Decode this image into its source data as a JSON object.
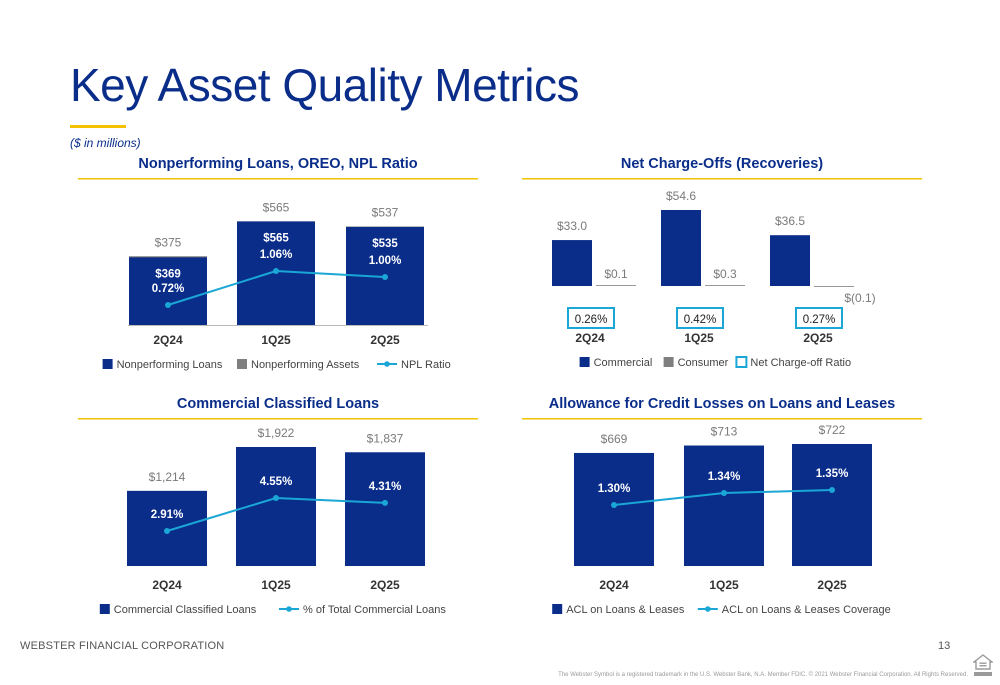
{
  "page": {
    "title": "Key Asset Quality Metrics",
    "subtitle": "($ in millions)",
    "footer_company": "WEBSTER FINANCIAL CORPORATION",
    "page_number": "13",
    "disclaimer": "The Webster Symbol is a registered trademark in the U.S. Webster Bank, N.A. Member FDIC. © 2021 Webster Financial Corporation. All Rights Reserved.",
    "housing_logo_text": "EQUAL HOUSING LENDER"
  },
  "colors": {
    "navy": "#0a2d8a",
    "gray": "#7f7f7f",
    "cyan": "#1aa7d6",
    "gold": "#f2c200",
    "label_gray": "#7a7a7a"
  },
  "chart_data": [
    {
      "id": "npl",
      "type": "bar",
      "title": "Nonperforming Loans, OREO, NPL Ratio",
      "categories": [
        "2Q24",
        "1Q25",
        "2Q25"
      ],
      "series": [
        {
          "name": "Nonperforming Loans",
          "type": "bar",
          "values": [
            369,
            565,
            535
          ],
          "labels": [
            "$369",
            "$565",
            "$535"
          ]
        },
        {
          "name": "Nonperforming Assets",
          "type": "bar",
          "values": [
            375,
            565,
            537
          ],
          "labels": [
            "$375",
            "$565",
            "$537"
          ]
        },
        {
          "name": "NPL Ratio",
          "type": "line",
          "values": [
            0.72,
            1.06,
            1.0
          ],
          "labels": [
            "0.72%",
            "1.06%",
            "1.00%"
          ]
        }
      ],
      "ylim": [
        0,
        600
      ],
      "legend": "bottom"
    },
    {
      "id": "nco",
      "type": "bar",
      "title": "Net Charge-Offs (Recoveries)",
      "categories": [
        "2Q24",
        "1Q25",
        "2Q25"
      ],
      "series": [
        {
          "name": "Commercial",
          "type": "bar",
          "values": [
            33.0,
            54.6,
            36.5
          ],
          "labels": [
            "$33.0",
            "$54.6",
            "$36.5"
          ]
        },
        {
          "name": "Consumer",
          "type": "bar",
          "values": [
            0.1,
            0.3,
            -0.1
          ],
          "labels": [
            "$0.1",
            "$0.3",
            "$(0.1)"
          ]
        },
        {
          "name": "Net Charge-off Ratio",
          "type": "box",
          "values": [
            0.26,
            0.42,
            0.27
          ],
          "labels": [
            "0.26%",
            "0.42%",
            "0.27%"
          ]
        }
      ],
      "ylim": [
        0,
        60
      ],
      "legend": "bottom"
    },
    {
      "id": "ccl",
      "type": "bar",
      "title": "Commercial Classified Loans",
      "categories": [
        "2Q24",
        "1Q25",
        "2Q25"
      ],
      "series": [
        {
          "name": "Commercial Classified Loans",
          "type": "bar",
          "values": [
            1214,
            1922,
            1837
          ],
          "labels": [
            "$1,214",
            "$1,922",
            "$1,837"
          ]
        },
        {
          "name": "% of Total Commercial Loans",
          "type": "line",
          "values": [
            2.91,
            4.55,
            4.31
          ],
          "labels": [
            "2.91%",
            "4.55%",
            "4.31%"
          ]
        }
      ],
      "ylim": [
        0,
        2050
      ],
      "legend": "bottom"
    },
    {
      "id": "acl",
      "type": "bar",
      "title": "Allowance for Credit Losses on Loans and Leases",
      "categories": [
        "2Q24",
        "1Q25",
        "2Q25"
      ],
      "series": [
        {
          "name": "ACL on Loans & Leases",
          "type": "bar",
          "values": [
            669,
            713,
            722
          ],
          "labels": [
            "$669",
            "$713",
            "$722"
          ]
        },
        {
          "name": "ACL on Loans & Leases Coverage",
          "type": "line",
          "values": [
            1.3,
            1.34,
            1.35
          ],
          "labels": [
            "1.30%",
            "1.34%",
            "1.35%"
          ]
        }
      ],
      "ylim": [
        0,
        760
      ],
      "legend": "bottom"
    }
  ]
}
